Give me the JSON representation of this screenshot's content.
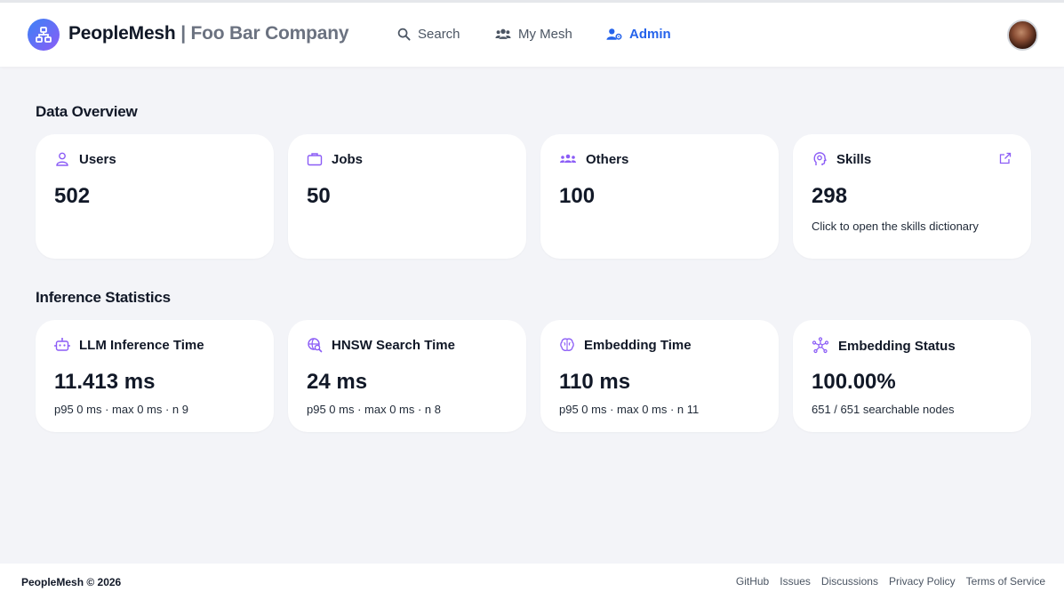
{
  "app": {
    "name": "PeopleMesh",
    "separator": "|",
    "company": "Foo Bar Company"
  },
  "nav": {
    "search": "Search",
    "my_mesh": "My Mesh",
    "admin": "Admin"
  },
  "data_overview": {
    "heading": "Data Overview",
    "cards": [
      {
        "icon": "user-icon",
        "title": "Users",
        "value": "502",
        "sub": ""
      },
      {
        "icon": "briefcase-icon",
        "title": "Jobs",
        "value": "50",
        "sub": ""
      },
      {
        "icon": "group-icon",
        "title": "Others",
        "value": "100",
        "sub": ""
      },
      {
        "icon": "head-bulb-icon",
        "title": "Skills",
        "value": "298",
        "sub": "Click to open the skills dictionary"
      }
    ]
  },
  "inference": {
    "heading": "Inference Statistics",
    "cards": [
      {
        "icon": "robot-icon",
        "title": "LLM Inference Time",
        "value": "11.413 ms",
        "sub": "p95 0 ms · max 0 ms · n 9"
      },
      {
        "icon": "globe-search-icon",
        "title": "HNSW Search Time",
        "value": "24 ms",
        "sub": "p95 0 ms · max 0 ms · n 8"
      },
      {
        "icon": "brain-icon",
        "title": "Embedding Time",
        "value": "110 ms",
        "sub": "p95 0 ms · max 0 ms · n 11"
      },
      {
        "icon": "network-icon",
        "title": "Embedding Status",
        "value": "100.00%",
        "sub": "651 / 651 searchable nodes"
      }
    ]
  },
  "footer": {
    "copyright": "PeopleMesh © 2026",
    "links": [
      "GitHub",
      "Issues",
      "Discussions",
      "Privacy Policy",
      "Terms of Service"
    ]
  },
  "colors": {
    "accent": "#2563eb",
    "icon_purple": "#8b5cf6",
    "page_bg": "#f3f4f8"
  }
}
